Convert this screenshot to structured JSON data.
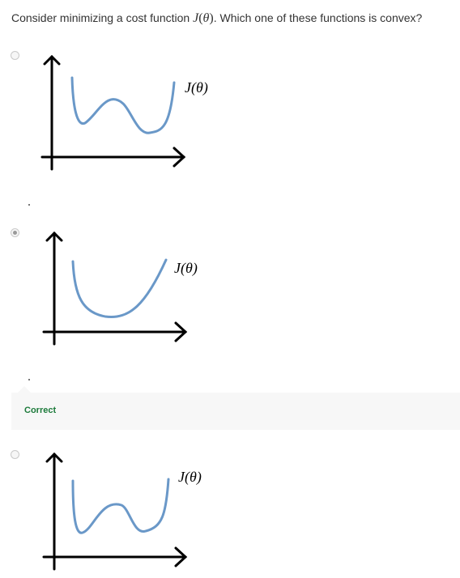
{
  "question": {
    "prefix": "Consider minimizing a cost function ",
    "math_var": "J",
    "math_paren_open": "(",
    "math_theta": "θ",
    "math_paren_close": ")",
    "suffix": ". Which one of these functions is convex?"
  },
  "options": [
    {
      "graph_label": "J(θ)",
      "selected": false
    },
    {
      "graph_label": "J(θ)",
      "selected": true
    },
    {
      "graph_label": "J(θ)",
      "selected": false
    }
  ],
  "feedback": {
    "label": "Correct",
    "label_color": "#1b7a3a"
  },
  "colors": {
    "curve": "#6a98c8",
    "axes": "#000000"
  }
}
